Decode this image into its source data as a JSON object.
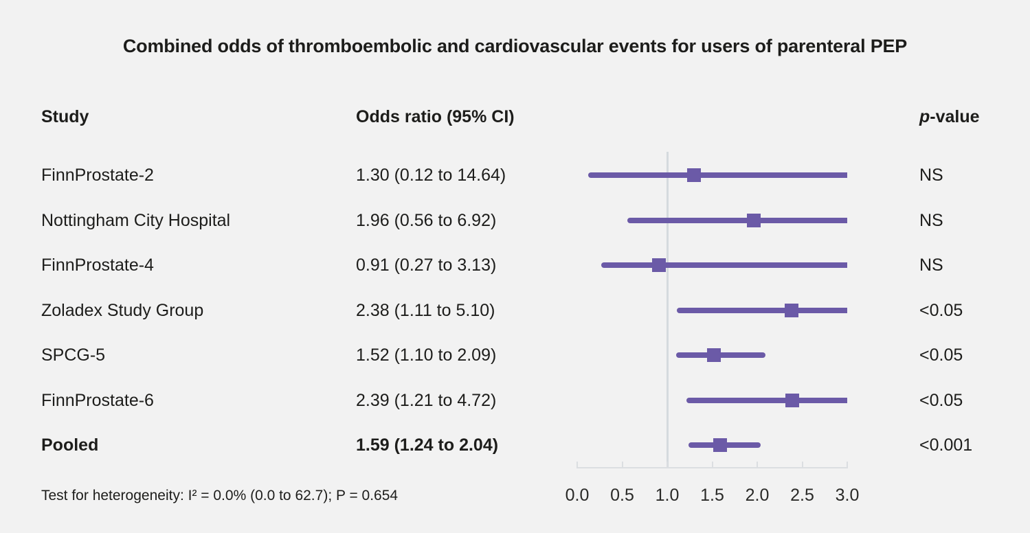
{
  "table": {
    "col_study": "Study",
    "col_or": "Odds ratio (95% CI)",
    "col_p_italic": "p",
    "col_p_rest": "-value"
  },
  "footer": {
    "heterogeneity": "Test for heterogeneity: I² = 0.0% (0.0 to 62.7); P = 0.654"
  },
  "colors": {
    "background": "#f2f2f2",
    "accent_purple": "#6b5aa7",
    "reference_line": "#d5dade",
    "axis_line": "#dbdee1",
    "text": "#1d1d1b"
  },
  "chart_data": {
    "type": "forest",
    "title": "Combined odds of thromboembolic and cardiovascular events for users of parenteral PEP",
    "xlabel": "",
    "xlim": [
      0.0,
      3.0
    ],
    "xticks": [
      0.0,
      0.5,
      1.0,
      1.5,
      2.0,
      2.5,
      3.0
    ],
    "reference_line": 1.0,
    "grid": false,
    "rows": [
      {
        "study": "FinnProstate-2",
        "or_label": "1.30 (0.12 to 14.64)",
        "estimate": 1.3,
        "ci_low": 0.12,
        "ci_high": 14.64,
        "p": "NS",
        "bold": false
      },
      {
        "study": "Nottingham City Hospital",
        "or_label": "1.96 (0.56 to 6.92)",
        "estimate": 1.96,
        "ci_low": 0.56,
        "ci_high": 6.92,
        "p": "NS",
        "bold": false
      },
      {
        "study": "FinnProstate-4",
        "or_label": "0.91 (0.27 to 3.13)",
        "estimate": 0.91,
        "ci_low": 0.27,
        "ci_high": 3.13,
        "p": "NS",
        "bold": false
      },
      {
        "study": "Zoladex Study Group",
        "or_label": "2.38 (1.11 to 5.10)",
        "estimate": 2.38,
        "ci_low": 1.11,
        "ci_high": 5.1,
        "p": "<0.05",
        "bold": false
      },
      {
        "study": "SPCG-5",
        "or_label": "1.52 (1.10 to 2.09)",
        "estimate": 1.52,
        "ci_low": 1.1,
        "ci_high": 2.09,
        "p": "<0.05",
        "bold": false
      },
      {
        "study": "FinnProstate-6",
        "or_label": "2.39 (1.21 to 4.72)",
        "estimate": 2.39,
        "ci_low": 1.21,
        "ci_high": 4.72,
        "p": "<0.05",
        "bold": false
      },
      {
        "study": "Pooled",
        "or_label": "1.59 (1.24 to 2.04)",
        "estimate": 1.59,
        "ci_low": 1.24,
        "ci_high": 2.04,
        "p": "<0.001",
        "bold": true
      }
    ]
  }
}
